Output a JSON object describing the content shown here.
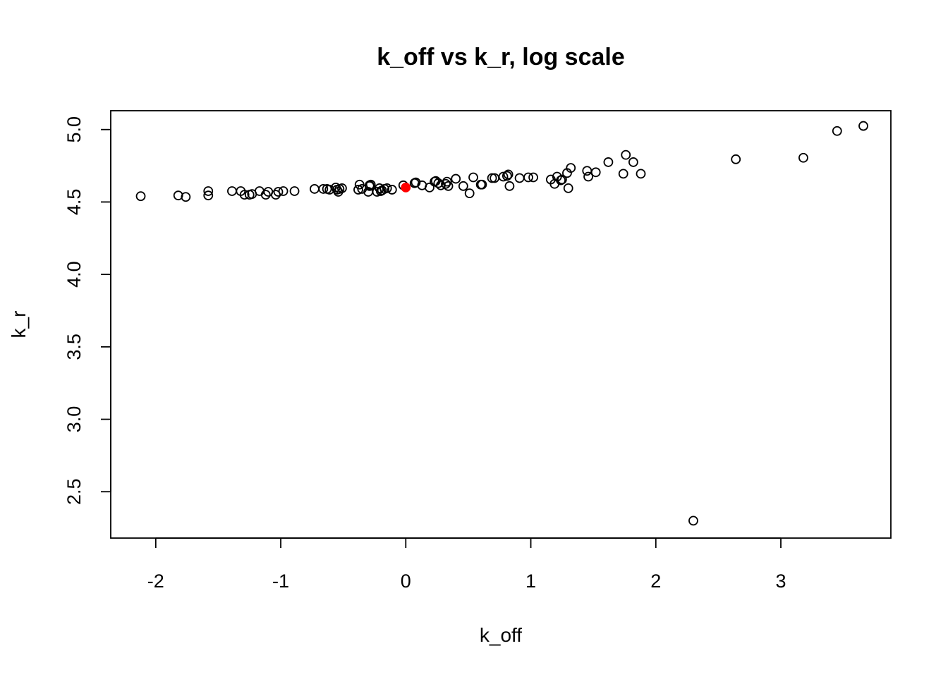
{
  "chart_data": {
    "type": "scatter",
    "title": "k_off vs k_r, log scale",
    "xlabel": "k_off",
    "ylabel": "k_r",
    "xlim": [
      -2.36,
      3.88
    ],
    "ylim": [
      2.18,
      5.13
    ],
    "xticks": [
      -2,
      -1,
      0,
      1,
      2,
      3
    ],
    "yticks": [
      2.5,
      3.0,
      3.5,
      4.0,
      4.5,
      5.0
    ],
    "xtick_labels": [
      "-2",
      "-1",
      "0",
      "1",
      "2",
      "3"
    ],
    "ytick_labels": [
      "2.5",
      "3.0",
      "3.5",
      "4.0",
      "4.5",
      "5.0"
    ],
    "grid": false,
    "legend": "none",
    "point_color": "#000000",
    "highlight_color": "#ff0000",
    "series": [
      {
        "values": [
          [
            -2.12,
            4.54
          ],
          [
            -1.82,
            4.545
          ],
          [
            -1.76,
            4.535
          ],
          [
            -1.58,
            4.545
          ],
          [
            -1.58,
            4.575
          ],
          [
            -1.39,
            4.575
          ],
          [
            -1.32,
            4.575
          ],
          [
            -1.29,
            4.55
          ],
          [
            -1.25,
            4.55
          ],
          [
            -1.23,
            4.555
          ],
          [
            -1.17,
            4.575
          ],
          [
            -1.12,
            4.55
          ],
          [
            -1.1,
            4.57
          ],
          [
            -1.04,
            4.55
          ],
          [
            -1.02,
            4.57
          ],
          [
            -0.98,
            4.575
          ],
          [
            -0.89,
            4.575
          ],
          [
            -0.73,
            4.59
          ],
          [
            -0.66,
            4.59
          ],
          [
            -0.63,
            4.59
          ],
          [
            -0.61,
            4.585
          ],
          [
            -0.56,
            4.6
          ],
          [
            -0.55,
            4.585
          ],
          [
            -0.54,
            4.57
          ],
          [
            -0.53,
            4.59
          ],
          [
            -0.51,
            4.595
          ],
          [
            -0.38,
            4.585
          ],
          [
            -0.37,
            4.62
          ],
          [
            -0.35,
            4.59
          ],
          [
            -0.3,
            4.57
          ],
          [
            -0.29,
            4.61
          ],
          [
            -0.29,
            4.615
          ],
          [
            -0.28,
            4.62
          ],
          [
            -0.23,
            4.57
          ],
          [
            -0.21,
            4.595
          ],
          [
            -0.2,
            4.575
          ],
          [
            -0.19,
            4.58
          ],
          [
            -0.17,
            4.59
          ],
          [
            -0.15,
            4.595
          ],
          [
            -0.11,
            4.585
          ],
          [
            -0.02,
            4.615
          ],
          [
            0.07,
            4.63
          ],
          [
            0.08,
            4.635
          ],
          [
            0.13,
            4.615
          ],
          [
            0.19,
            4.6
          ],
          [
            0.23,
            4.64
          ],
          [
            0.24,
            4.645
          ],
          [
            0.26,
            4.63
          ],
          [
            0.28,
            4.615
          ],
          [
            0.32,
            4.625
          ],
          [
            0.33,
            4.64
          ],
          [
            0.34,
            4.61
          ],
          [
            0.4,
            4.66
          ],
          [
            0.46,
            4.61
          ],
          [
            0.51,
            4.56
          ],
          [
            0.54,
            4.67
          ],
          [
            0.6,
            4.62
          ],
          [
            0.61,
            4.62
          ],
          [
            0.69,
            4.665
          ],
          [
            0.71,
            4.665
          ],
          [
            0.78,
            4.675
          ],
          [
            0.81,
            4.68
          ],
          [
            0.82,
            4.69
          ],
          [
            0.83,
            4.61
          ],
          [
            0.91,
            4.665
          ],
          [
            0.98,
            4.67
          ],
          [
            1.02,
            4.67
          ],
          [
            1.16,
            4.655
          ],
          [
            1.19,
            4.625
          ],
          [
            1.21,
            4.675
          ],
          [
            1.24,
            4.65
          ],
          [
            1.25,
            4.655
          ],
          [
            1.29,
            4.7
          ],
          [
            1.3,
            4.595
          ],
          [
            1.32,
            4.735
          ],
          [
            1.45,
            4.715
          ],
          [
            1.46,
            4.675
          ],
          [
            1.52,
            4.705
          ],
          [
            1.62,
            4.775
          ],
          [
            1.74,
            4.695
          ],
          [
            1.76,
            4.825
          ],
          [
            1.82,
            4.775
          ],
          [
            1.88,
            4.695
          ],
          [
            2.3,
            2.3
          ],
          [
            2.64,
            4.795
          ],
          [
            3.18,
            4.805
          ],
          [
            3.45,
            4.99
          ],
          [
            3.66,
            5.025
          ]
        ]
      },
      {
        "values": [
          [
            0.0,
            4.6
          ]
        ],
        "filled": true
      }
    ]
  }
}
